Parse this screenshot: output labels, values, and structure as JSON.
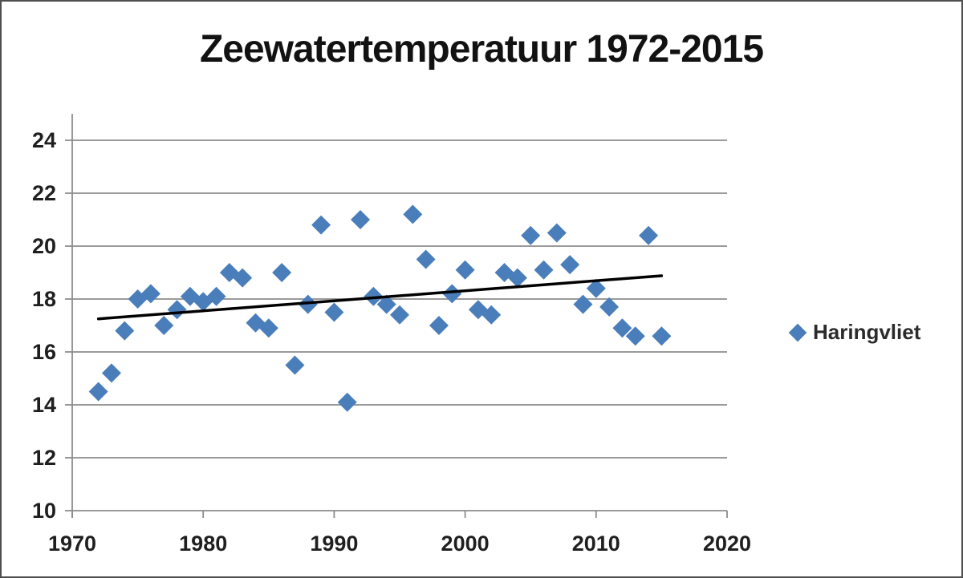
{
  "chart": {
    "title": "Zeewatertemperatuur 1972-2015",
    "legend_label": "Haringvliet"
  },
  "colors": {
    "marker": "#4A7EBB",
    "trendline": "#000000",
    "grid": "#8C8C8C",
    "tick_text": "#1f1f1f"
  },
  "chart_data": {
    "type": "scatter",
    "title": "Zeewatertemperatuur 1972-2015",
    "xlabel": "",
    "ylabel": "",
    "xlim": [
      1970,
      2020
    ],
    "ylim": [
      10,
      25
    ],
    "x_ticks": [
      1970,
      1980,
      1990,
      2000,
      2010,
      2020
    ],
    "y_ticks": [
      10,
      12,
      14,
      16,
      18,
      20,
      22,
      24
    ],
    "grid": "horizontal",
    "legend_position": "right",
    "series": [
      {
        "name": "Haringvliet",
        "marker": "diamond",
        "color": "#4A7EBB",
        "x": [
          1972,
          1973,
          1974,
          1975,
          1976,
          1977,
          1978,
          1979,
          1980,
          1981,
          1982,
          1983,
          1984,
          1985,
          1986,
          1987,
          1988,
          1989,
          1990,
          1991,
          1992,
          1993,
          1994,
          1995,
          1996,
          1997,
          1998,
          1999,
          2000,
          2001,
          2002,
          2003,
          2004,
          2005,
          2006,
          2007,
          2008,
          2009,
          2010,
          2011,
          2012,
          2013,
          2014,
          2015
        ],
        "y": [
          14.5,
          15.2,
          16.8,
          18.0,
          18.2,
          17.0,
          17.6,
          18.1,
          17.9,
          18.1,
          19.0,
          18.8,
          17.1,
          16.9,
          19.0,
          15.5,
          17.8,
          20.8,
          17.5,
          14.1,
          21.0,
          18.1,
          17.8,
          17.4,
          21.2,
          19.5,
          17.0,
          18.2,
          19.1,
          17.6,
          17.4,
          19.0,
          18.8,
          20.4,
          19.1,
          20.5,
          19.3,
          17.8,
          18.4,
          17.7,
          16.9,
          16.6,
          20.4,
          16.6
        ]
      }
    ],
    "trendline": {
      "type": "linear",
      "x": [
        1972,
        2015
      ],
      "y": [
        17.25,
        18.88
      ],
      "color": "#000000"
    }
  }
}
